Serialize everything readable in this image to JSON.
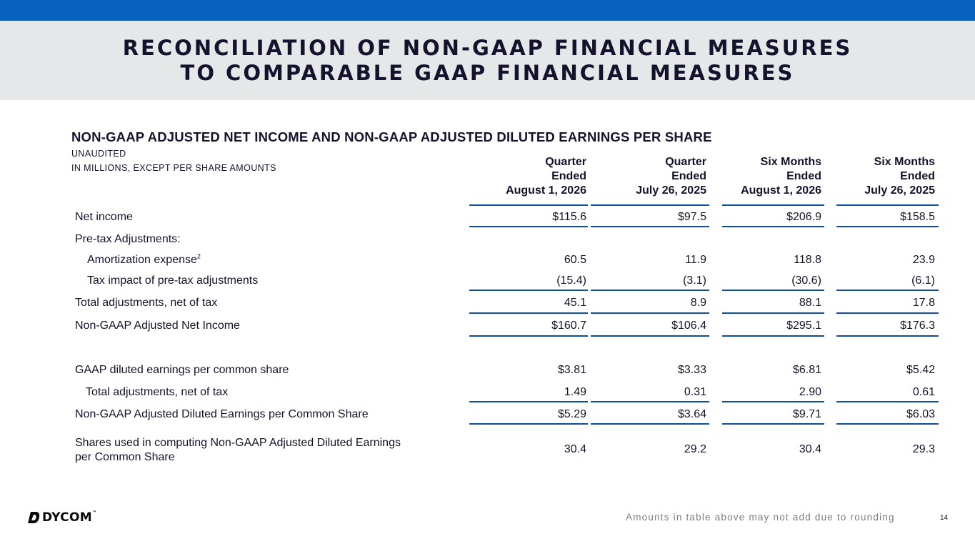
{
  "header": {
    "title_line1": "RECONCILIATION OF NON-GAAP FINANCIAL MEASURES",
    "title_line2": "TO COMPARABLE GAAP FINANCIAL MEASURES",
    "accent_color": "#0660bd",
    "band_color": "#e6e7e8"
  },
  "section": {
    "title": "NON-GAAP ADJUSTED NET INCOME AND NON-GAAP ADJUSTED DILUTED EARNINGS PER SHARE",
    "subtitle1": "UNAUDITED",
    "subtitle2": "IN MILLIONS, EXCEPT PER SHARE AMOUNTS"
  },
  "table": {
    "columns": [
      {
        "line1": "Quarter",
        "line2": "Ended",
        "line3": "August 1, 2026"
      },
      {
        "line1": "Quarter",
        "line2": "Ended",
        "line3": "July 26, 2025"
      },
      {
        "line1": "Six Months",
        "line2": "Ended",
        "line3": "August 1, 2026"
      },
      {
        "line1": "Six Months",
        "line2": "Ended",
        "line3": "July 26, 2025"
      }
    ],
    "rows": [
      {
        "label": "Net income",
        "values": [
          "$115.6",
          "$97.5",
          "$206.9",
          "$158.5"
        ]
      },
      {
        "label": "Pre-tax Adjustments:",
        "values": [
          "",
          "",
          "",
          ""
        ]
      },
      {
        "label": "Amortization expense",
        "footnote": "2",
        "values": [
          "60.5",
          "11.9",
          "118.8",
          "23.9"
        ]
      },
      {
        "label": "Tax impact of pre-tax adjustments",
        "values": [
          "(15.4)",
          "(3.1)",
          "(30.6)",
          "(6.1)"
        ]
      },
      {
        "label": "Total adjustments, net of tax",
        "values": [
          "45.1",
          "8.9",
          "88.1",
          "17.8"
        ]
      },
      {
        "label": "Non-GAAP Adjusted Net Income",
        "values": [
          "$160.7",
          "$106.4",
          "$295.1",
          "$176.3"
        ]
      },
      {
        "label": "GAAP diluted earnings per common share",
        "values": [
          "$3.81",
          "$3.33",
          "$6.81",
          "$5.42"
        ]
      },
      {
        "label": "Total adjustments, net of tax",
        "values": [
          "1.49",
          "0.31",
          "2.90",
          "0.61"
        ]
      },
      {
        "label": "Non-GAAP Adjusted Diluted Earnings per Common Share",
        "values": [
          "$5.29",
          "$3.64",
          "$9.71",
          "$6.03"
        ]
      },
      {
        "label_line1": "Shares used in computing Non-GAAP Adjusted Diluted Earnings",
        "label_line2": "per Common Share",
        "values": [
          "30.4",
          "29.2",
          "30.4",
          "29.3"
        ]
      }
    ]
  },
  "footer": {
    "logo_text": "DYCOM",
    "logo_mark": "™",
    "note": "Amounts in table above may not add due to rounding",
    "page_number": "14"
  }
}
